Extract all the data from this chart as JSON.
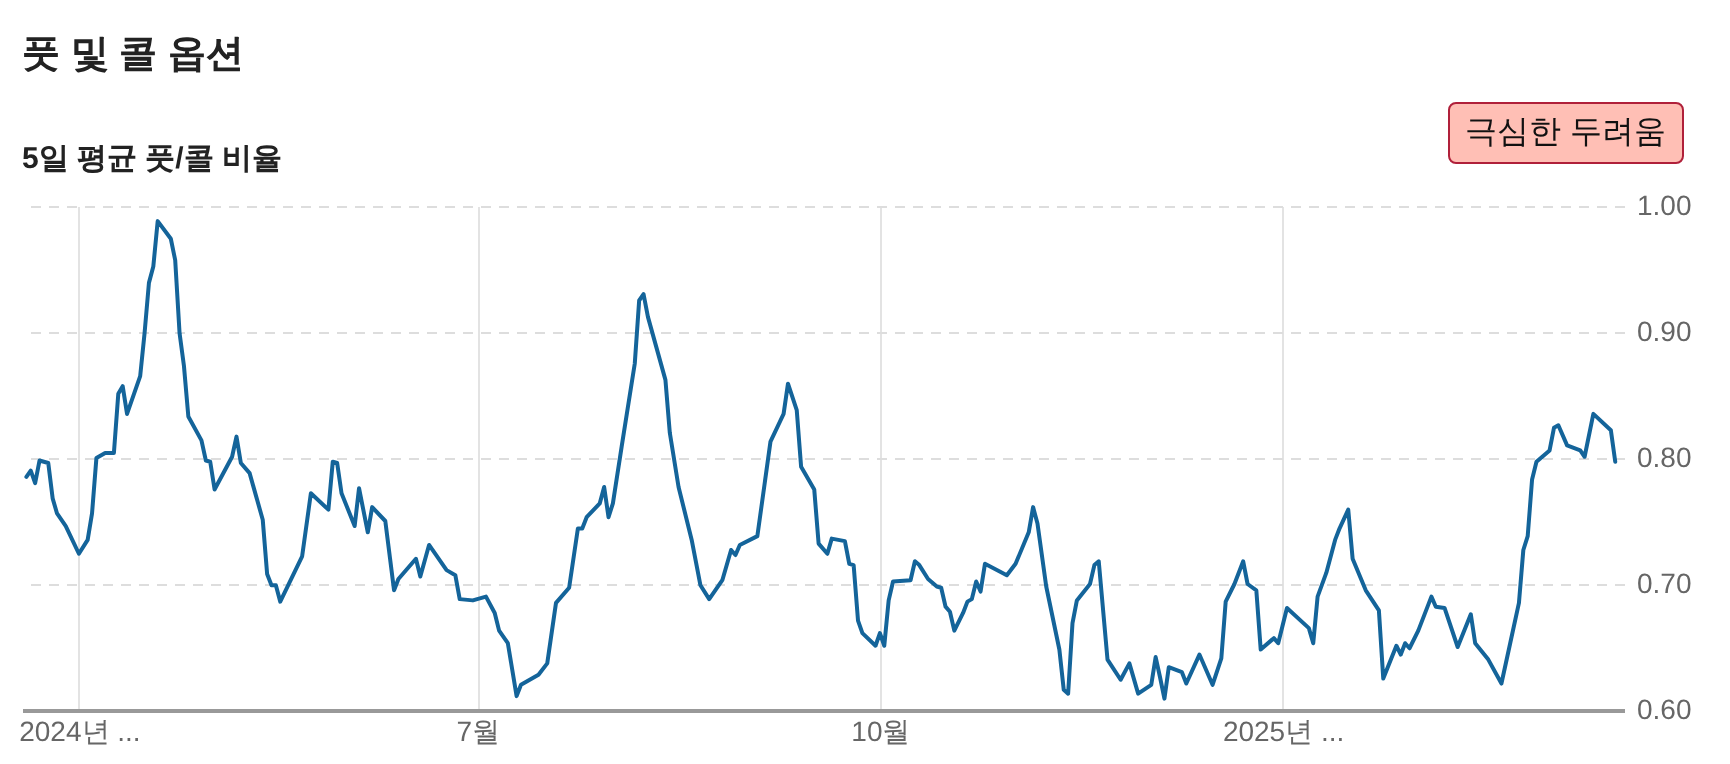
{
  "chart_data": {
    "type": "line",
    "title": "풋 및 콜 옵션",
    "subtitle": "5일 평균 풋/콜 비율",
    "annotations": [
      "극심한 두려움"
    ],
    "x": [
      "2024-03-20",
      "2024-03-21",
      "2024-03-22",
      "2024-03-23",
      "2024-03-25",
      "2024-03-26",
      "2024-03-27",
      "2024-03-29",
      "2024-04-01",
      "2024-04-03",
      "2024-04-04",
      "2024-04-05",
      "2024-04-07",
      "2024-04-09",
      "2024-04-10",
      "2024-04-11",
      "2024-04-12",
      "2024-04-15",
      "2024-04-16",
      "2024-04-17",
      "2024-04-18",
      "2024-04-19",
      "2024-04-22",
      "2024-04-23",
      "2024-04-24",
      "2024-04-25",
      "2024-04-26",
      "2024-04-29",
      "2024-04-30",
      "2024-05-01",
      "2024-05-02",
      "2024-05-06",
      "2024-05-07",
      "2024-05-08",
      "2024-05-10",
      "2024-05-13",
      "2024-05-14",
      "2024-05-15",
      "2024-05-16",
      "2024-05-17",
      "2024-05-22",
      "2024-05-24",
      "2024-05-28",
      "2024-05-29",
      "2024-05-30",
      "2024-05-31",
      "2024-06-03",
      "2024-06-04",
      "2024-06-06",
      "2024-06-07",
      "2024-06-10",
      "2024-06-12",
      "2024-06-13",
      "2024-06-17",
      "2024-06-18",
      "2024-06-20",
      "2024-06-24",
      "2024-06-26",
      "2024-06-27",
      "2024-06-30",
      "2024-07-02",
      "2024-07-03",
      "2024-07-05",
      "2024-07-06",
      "2024-07-08",
      "2024-07-10",
      "2024-07-11",
      "2024-07-15",
      "2024-07-17",
      "2024-07-19",
      "2024-07-22",
      "2024-07-24",
      "2024-07-25",
      "2024-07-26",
      "2024-07-29",
      "2024-07-30",
      "2024-07-31",
      "2024-08-01",
      "2024-08-03",
      "2024-08-06",
      "2024-08-07",
      "2024-08-08",
      "2024-08-09",
      "2024-08-13",
      "2024-08-14",
      "2024-08-16",
      "2024-08-19",
      "2024-08-21",
      "2024-08-23",
      "2024-08-26",
      "2024-08-28",
      "2024-08-29",
      "2024-08-30",
      "2024-09-03",
      "2024-09-06",
      "2024-09-09",
      "2024-09-10",
      "2024-09-12",
      "2024-09-13",
      "2024-09-16",
      "2024-09-17",
      "2024-09-19",
      "2024-09-20",
      "2024-09-23",
      "2024-09-24",
      "2024-09-25",
      "2024-09-26",
      "2024-09-27",
      "2024-09-30",
      "2024-10-01",
      "2024-10-02",
      "2024-10-03",
      "2024-10-04",
      "2024-10-08",
      "2024-10-09",
      "2024-10-10",
      "2024-10-12",
      "2024-10-14",
      "2024-10-15",
      "2024-10-16",
      "2024-10-17",
      "2024-10-18",
      "2024-10-20",
      "2024-10-21",
      "2024-10-22",
      "2024-10-23",
      "2024-10-24",
      "2024-10-25",
      "2024-10-30",
      "2024-11-01",
      "2024-11-04",
      "2024-11-05",
      "2024-11-06",
      "2024-11-08",
      "2024-11-11",
      "2024-11-12",
      "2024-11-13",
      "2024-11-14",
      "2024-11-15",
      "2024-11-18",
      "2024-11-19",
      "2024-11-20",
      "2024-11-22",
      "2024-11-25",
      "2024-11-27",
      "2024-11-29",
      "2024-12-02",
      "2024-12-03",
      "2024-12-04",
      "2024-12-05",
      "2024-12-06",
      "2024-12-09",
      "2024-12-10",
      "2024-12-13",
      "2024-12-16",
      "2024-12-18",
      "2024-12-19",
      "2024-12-21",
      "2024-12-23",
      "2024-12-24",
      "2024-12-26",
      "2024-12-27",
      "2024-12-30",
      "2024-12-31",
      "2025-01-02",
      "2025-01-07",
      "2025-01-08",
      "2025-01-09",
      "2025-01-11",
      "2025-01-13",
      "2025-01-14",
      "2025-01-16",
      "2025-01-17",
      "2025-01-20",
      "2025-01-23",
      "2025-01-24",
      "2025-01-27",
      "2025-01-28",
      "2025-01-29",
      "2025-01-30",
      "2025-02-01",
      "2025-02-04",
      "2025-02-05",
      "2025-02-07",
      "2025-02-10",
      "2025-02-13",
      "2025-02-14",
      "2025-02-17",
      "2025-02-20",
      "2025-02-22",
      "2025-02-24",
      "2025-02-25",
      "2025-02-26",
      "2025-02-27",
      "2025-02-28",
      "2025-03-03",
      "2025-03-04",
      "2025-03-05",
      "2025-03-07",
      "2025-03-10",
      "2025-03-11",
      "2025-03-13",
      "2025-03-17",
      "2025-03-18"
    ],
    "series": [
      {
        "color": "#14649a",
        "values": [
          0.785,
          0.79,
          0.78,
          0.798,
          0.796,
          0.768,
          0.756,
          0.746,
          0.724,
          0.735,
          0.756,
          0.8,
          0.804,
          0.804,
          0.851,
          0.857,
          0.835,
          0.865,
          0.899,
          0.939,
          0.952,
          0.988,
          0.974,
          0.957,
          0.899,
          0.873,
          0.833,
          0.814,
          0.798,
          0.797,
          0.775,
          0.801,
          0.817,
          0.796,
          0.788,
          0.751,
          0.708,
          0.699,
          0.699,
          0.686,
          0.722,
          0.772,
          0.759,
          0.797,
          0.796,
          0.772,
          0.746,
          0.776,
          0.741,
          0.761,
          0.75,
          0.695,
          0.704,
          0.72,
          0.706,
          0.731,
          0.711,
          0.707,
          0.688,
          0.687,
          0.689,
          0.69,
          0.677,
          0.663,
          0.653,
          0.611,
          0.62,
          0.628,
          0.637,
          0.685,
          0.697,
          0.744,
          0.744,
          0.753,
          0.764,
          0.777,
          0.753,
          0.764,
          0.809,
          0.875,
          0.925,
          0.93,
          0.912,
          0.862,
          0.82,
          0.777,
          0.735,
          0.699,
          0.688,
          0.703,
          0.727,
          0.723,
          0.731,
          0.738,
          0.813,
          0.835,
          0.859,
          0.838,
          0.793,
          0.775,
          0.732,
          0.724,
          0.736,
          0.734,
          0.716,
          0.715,
          0.671,
          0.661,
          0.651,
          0.661,
          0.651,
          0.687,
          0.702,
          0.703,
          0.718,
          0.715,
          0.704,
          0.698,
          0.697,
          0.682,
          0.678,
          0.663,
          0.677,
          0.686,
          0.688,
          0.702,
          0.694,
          0.716,
          0.707,
          0.716,
          0.741,
          0.761,
          0.748,
          0.698,
          0.648,
          0.616,
          0.613,
          0.669,
          0.687,
          0.7,
          0.715,
          0.718,
          0.64,
          0.624,
          0.637,
          0.613,
          0.62,
          0.642,
          0.626,
          0.609,
          0.634,
          0.63,
          0.621,
          0.644,
          0.62,
          0.641,
          0.686,
          0.7,
          0.718,
          0.7,
          0.695,
          0.648,
          0.657,
          0.653,
          0.681,
          0.665,
          0.653,
          0.69,
          0.709,
          0.735,
          0.744,
          0.759,
          0.72,
          0.695,
          0.679,
          0.625,
          0.651,
          0.644,
          0.653,
          0.649,
          0.663,
          0.69,
          0.682,
          0.681,
          0.65,
          0.676,
          0.653,
          0.64,
          0.621,
          0.653,
          0.685,
          0.727,
          0.738,
          0.783,
          0.797,
          0.806,
          0.824,
          0.826,
          0.81,
          0.806,
          0.801,
          0.835,
          0.822,
          0.797
        ]
      }
    ],
    "xlim": [
      "2024-03-19",
      "2025-03-20"
    ],
    "xticks": [
      {
        "value": "2024-04-01",
        "label": "2024년 ..."
      },
      {
        "value": "2024-07-01",
        "label": "7월"
      },
      {
        "value": "2024-10-01",
        "label": "10월"
      },
      {
        "value": "2025-01-01",
        "label": "2025년 ..."
      }
    ],
    "ylim": [
      0.6,
      1.0
    ],
    "yticks": [
      {
        "value": 0.6,
        "label": "0.60"
      },
      {
        "value": 0.7,
        "label": "0.70"
      },
      {
        "value": 0.8,
        "label": "0.80"
      },
      {
        "value": 0.9,
        "label": "0.90"
      },
      {
        "value": 1.0,
        "label": "1.00"
      }
    ],
    "grid": true,
    "marker": "none",
    "line_style": "solid"
  }
}
